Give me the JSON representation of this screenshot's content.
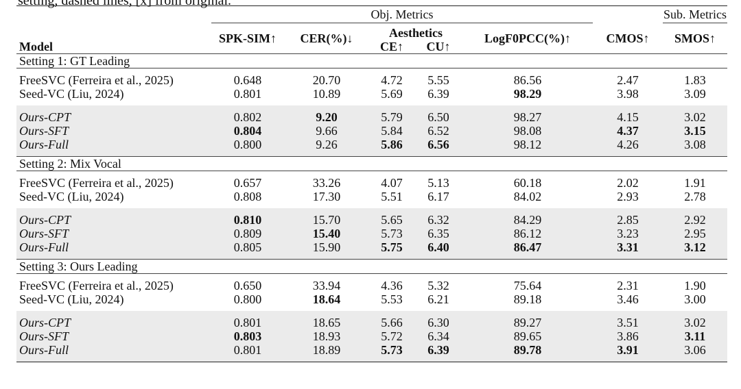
{
  "caption_tail": "setting, dashed lines, [x] from original.",
  "header": {
    "model": "Model",
    "obj_metrics": "Obj. Metrics",
    "sub_metrics": "Sub. Metrics",
    "aesthetics": "Aesthetics",
    "spk_sim": "SPK-SIM↑",
    "cer": "CER(%)↓",
    "ce": "CE↑",
    "cu": "CU↑",
    "logf0pcc": "LogF0PCC(%)↑",
    "cmos": "CMOS↑",
    "smos": "SMOS↑"
  },
  "settings": [
    {
      "title": "Setting 1: GT Leading",
      "baselines": [
        {
          "model": "FreeSVC (Ferreira et al., 2025)",
          "vals": [
            "0.648",
            "20.70",
            "4.72",
            "5.55",
            "86.56",
            "2.47",
            "1.83"
          ],
          "bold": []
        },
        {
          "model": "Seed-VC (Liu, 2024)",
          "vals": [
            "0.801",
            "10.89",
            "5.69",
            "6.39",
            "98.29",
            "3.98",
            "3.09"
          ],
          "bold": [
            4
          ]
        }
      ],
      "ours": [
        {
          "model": "Ours-CPT",
          "vals": [
            "0.802",
            "9.20",
            "5.79",
            "6.50",
            "98.27",
            "4.15",
            "3.02"
          ],
          "bold": [
            1
          ]
        },
        {
          "model": "Ours-SFT",
          "vals": [
            "0.804",
            "9.66",
            "5.84",
            "6.52",
            "98.08",
            "4.37",
            "3.15"
          ],
          "bold": [
            0,
            5,
            6
          ]
        },
        {
          "model": "Ours-Full",
          "vals": [
            "0.800",
            "9.26",
            "5.86",
            "6.56",
            "98.12",
            "4.26",
            "3.08"
          ],
          "bold": [
            2,
            3
          ]
        }
      ]
    },
    {
      "title": "Setting 2: Mix Vocal",
      "baselines": [
        {
          "model": "FreeSVC (Ferreira et al., 2025)",
          "vals": [
            "0.657",
            "33.26",
            "4.07",
            "5.13",
            "60.18",
            "2.02",
            "1.91"
          ],
          "bold": []
        },
        {
          "model": "Seed-VC (Liu, 2024)",
          "vals": [
            "0.808",
            "17.30",
            "5.51",
            "6.17",
            "84.02",
            "2.93",
            "2.78"
          ],
          "bold": []
        }
      ],
      "ours": [
        {
          "model": "Ours-CPT",
          "vals": [
            "0.810",
            "15.70",
            "5.65",
            "6.32",
            "84.29",
            "2.85",
            "2.92"
          ],
          "bold": [
            0
          ]
        },
        {
          "model": "Ours-SFT",
          "vals": [
            "0.809",
            "15.40",
            "5.73",
            "6.35",
            "86.12",
            "3.23",
            "2.95"
          ],
          "bold": [
            1
          ]
        },
        {
          "model": "Ours-Full",
          "vals": [
            "0.805",
            "15.90",
            "5.75",
            "6.40",
            "86.47",
            "3.31",
            "3.12"
          ],
          "bold": [
            2,
            3,
            4,
            5,
            6
          ]
        }
      ]
    },
    {
      "title": "Setting 3: Ours Leading",
      "baselines": [
        {
          "model": "FreeSVC (Ferreira et al., 2025)",
          "vals": [
            "0.650",
            "33.94",
            "4.36",
            "5.32",
            "75.64",
            "2.31",
            "1.90"
          ],
          "bold": []
        },
        {
          "model": "Seed-VC (Liu, 2024)",
          "vals": [
            "0.800",
            "18.64",
            "5.53",
            "6.21",
            "89.18",
            "3.46",
            "3.00"
          ],
          "bold": [
            1
          ]
        }
      ],
      "ours": [
        {
          "model": "Ours-CPT",
          "vals": [
            "0.801",
            "18.65",
            "5.66",
            "6.30",
            "89.27",
            "3.51",
            "3.02"
          ],
          "bold": []
        },
        {
          "model": "Ours-SFT",
          "vals": [
            "0.803",
            "18.93",
            "5.72",
            "6.34",
            "89.65",
            "3.86",
            "3.11"
          ],
          "bold": [
            0,
            6
          ]
        },
        {
          "model": "Ours-Full",
          "vals": [
            "0.801",
            "18.89",
            "5.73",
            "6.39",
            "89.78",
            "3.91",
            "3.06"
          ],
          "bold": [
            2,
            3,
            4,
            5
          ]
        }
      ]
    }
  ]
}
